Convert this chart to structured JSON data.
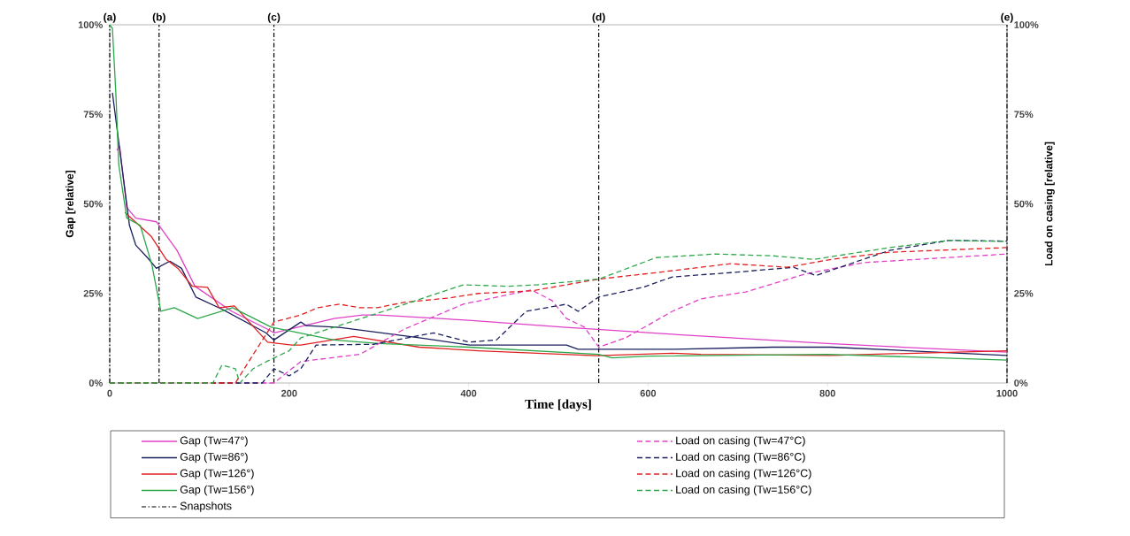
{
  "chart_data": {
    "type": "line",
    "xlabel": "Time [days]",
    "ylabel": "Gap [relative]",
    "y2label": "Load on casing [relative]",
    "xlim": [
      0,
      1000
    ],
    "xticks": [
      0,
      200,
      400,
      600,
      800,
      1000
    ],
    "ylim": [
      0,
      100
    ],
    "yticks": [
      {
        "value": 0,
        "label": "0%"
      },
      {
        "value": 25,
        "label": "25%"
      },
      {
        "value": 50,
        "label": "50%"
      },
      {
        "value": 75,
        "label": "75%"
      },
      {
        "value": 100,
        "label": "100%"
      }
    ],
    "y2lim": [
      0,
      100
    ],
    "y2ticks": [
      {
        "value": 0,
        "label": "0%"
      },
      {
        "value": 25,
        "label": "25%"
      },
      {
        "value": 50,
        "label": "50%"
      },
      {
        "value": 75,
        "label": "75%"
      },
      {
        "value": 100,
        "label": "100%"
      }
    ],
    "legend": "bottom",
    "marker": "none",
    "ref_lines": [
      {
        "axis": "x",
        "value": 0,
        "label": "(a)",
        "color": "#000000",
        "line_style": "dashdot"
      },
      {
        "axis": "x",
        "value": 55,
        "label": "(b)",
        "color": "#000000",
        "line_style": "dashdot"
      },
      {
        "axis": "x",
        "value": 183,
        "label": "(c)",
        "color": "#000000",
        "line_style": "dashdot"
      },
      {
        "axis": "x",
        "value": 545,
        "label": "(d)",
        "color": "#000000",
        "line_style": "dashdot"
      },
      {
        "axis": "x",
        "value": 1000,
        "label": "(e)",
        "color": "#000000",
        "line_style": "dashdot"
      }
    ],
    "annotations": [
      "Snapshots"
    ],
    "series": [
      {
        "name": "Gap (Tw=47°)",
        "color": "#e040c8",
        "line_style": "solid",
        "x": [
          8,
          11,
          19,
          29,
          52,
          75,
          95,
          136,
          176,
          183,
          250,
          282,
          300,
          400,
          509,
          627,
          800,
          1000
        ],
        "values": [
          65,
          66,
          49,
          46,
          45,
          37,
          27,
          20,
          15,
          14,
          18,
          19,
          19,
          17.5,
          15.5,
          13.6,
          11,
          8.6
        ]
      },
      {
        "name": "Load on casing (Tw=47°C)",
        "color": "#e040c8",
        "line_style": "dashed",
        "axis": "y2",
        "x": [
          0,
          183,
          213,
          279,
          328,
          394,
          470,
          493,
          509,
          529,
          545,
          575,
          627,
          659,
          709,
          775,
          840,
          1000
        ],
        "values": [
          0,
          0,
          6,
          8,
          15,
          22,
          26,
          23,
          18,
          15.6,
          10,
          12.6,
          20,
          23.5,
          25.4,
          30.4,
          33.6,
          36
        ]
      },
      {
        "name": "Gap (Tw=86°)",
        "color": "#1a1f5e",
        "line_style": "solid",
        "x": [
          3,
          22,
          29,
          42,
          52,
          67,
          80,
          96,
          126,
          174,
          183,
          213,
          219,
          256,
          345,
          401,
          509,
          522,
          627,
          739,
          804,
          1000
        ],
        "values": [
          81,
          44,
          38.5,
          35,
          32,
          34,
          32,
          24,
          20.5,
          14,
          12,
          17,
          16,
          15.5,
          12.6,
          10.6,
          10.6,
          9.4,
          9.4,
          10,
          10,
          7.7
        ]
      },
      {
        "name": "Load on casing (Tw=86°C)",
        "color": "#1a1f5e",
        "line_style": "dashed",
        "axis": "y2",
        "x": [
          0,
          170,
          183,
          200,
          213,
          230,
          294,
          361,
          401,
          431,
          464,
          509,
          522,
          545,
          594,
          627,
          692,
          762,
          787,
          869,
          935,
          1000
        ],
        "values": [
          0,
          0,
          4,
          2,
          4,
          10.6,
          10.8,
          14,
          11.4,
          12,
          20,
          22,
          20,
          24,
          26.7,
          29.6,
          30.8,
          32.3,
          30,
          37,
          39.8,
          39.6
        ]
      },
      {
        "name": "Gap (Tw=126°)",
        "color": "#e02020",
        "line_style": "solid",
        "x": [
          17,
          46,
          63,
          76,
          92,
          109,
          122,
          139,
          176,
          203,
          213,
          272,
          345,
          411,
          542,
          627,
          659,
          804,
          1000
        ],
        "values": [
          47.6,
          41,
          34.5,
          32,
          27,
          26.7,
          21,
          21.5,
          11.4,
          10.6,
          10.6,
          13,
          10,
          9,
          7.6,
          8.3,
          8,
          7.7,
          9
        ]
      },
      {
        "name": "Load on casing (Tw=126°C)",
        "color": "#e02020",
        "line_style": "dashed",
        "axis": "y2",
        "x": [
          0,
          140,
          160,
          183,
          213,
          232,
          256,
          279,
          298,
          328,
          377,
          411,
          470,
          545,
          609,
          692,
          755,
          804,
          869,
          1000
        ],
        "values": [
          0,
          0,
          8,
          17,
          19,
          21,
          22,
          21,
          21,
          22.5,
          23.7,
          25,
          25.7,
          29,
          30.8,
          33.3,
          32.3,
          34.5,
          36.5,
          37.8
        ]
      },
      {
        "name": "Gap (Tw=156°)",
        "color": "#2ca84a",
        "line_style": "solid",
        "x": [
          0,
          3,
          7,
          10,
          19,
          34,
          47,
          57,
          72,
          98,
          137,
          180,
          250,
          300,
          400,
          545,
          560,
          600,
          800,
          1000
        ],
        "values": [
          100,
          99,
          80,
          61,
          46,
          44,
          33,
          20,
          21,
          18,
          21,
          15.6,
          12,
          11,
          10,
          8,
          7,
          7.5,
          8,
          6.4
        ]
      },
      {
        "name": "Load on casing (Tw=156°C)",
        "color": "#2ca84a",
        "line_style": "dashed",
        "axis": "y2",
        "x": [
          0,
          115,
          125,
          140,
          145,
          160,
          175,
          200,
          213,
          305,
          394,
          443,
          476,
          545,
          609,
          675,
          739,
          785,
          869,
          935,
          1000
        ],
        "values": [
          0,
          0,
          5,
          4,
          0,
          4,
          6,
          9,
          12.6,
          20,
          27.4,
          27,
          27.4,
          29,
          35,
          36,
          35.5,
          34.5,
          37.8,
          39.8,
          39.5
        ]
      }
    ]
  }
}
